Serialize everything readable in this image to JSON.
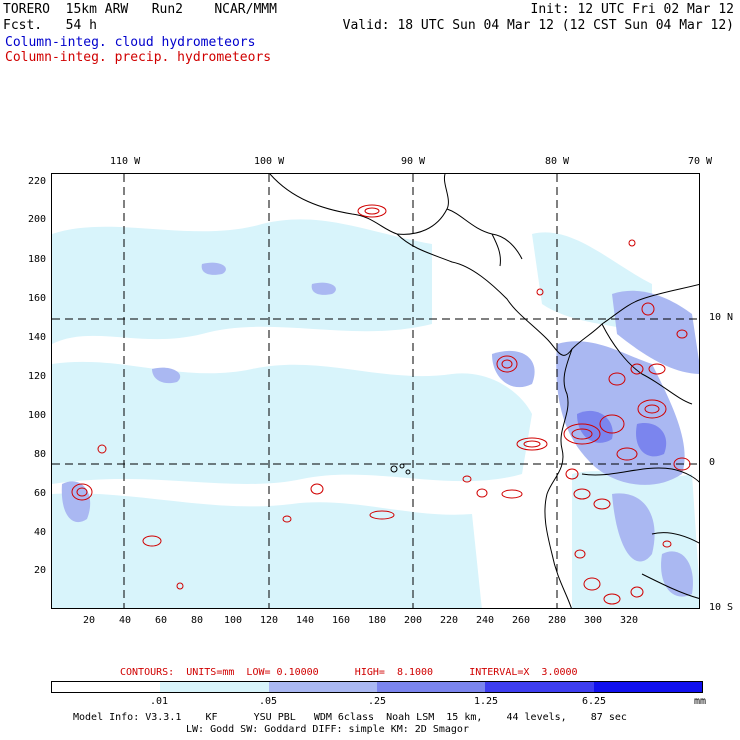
{
  "header": {
    "model_title": "TORERO  15km ARW   Run2    NCAR/MMM",
    "forecast": "Fcst.   54 h",
    "init": "Init: 12 UTC Fri 02 Mar 12",
    "valid": "Valid: 18 UTC Sun 04 Mar 12 (12 CST Sun 04 Mar 12)",
    "field_cloud": "Column-integ. cloud hydrometeors",
    "field_precip": "Column-integ. precip. hydrometeors"
  },
  "colors": {
    "cloud_blue": "#0000cc",
    "precip_red": "#d00000",
    "land_line": "#000000",
    "shade_1": "#d8f4fb",
    "shade_2": "#aab8f2",
    "shade_3": "#7b85ee",
    "shade_4": "#3d3df0",
    "shade_5": "#1010ee"
  },
  "axes": {
    "top_lon_labels": [
      "110 W",
      "100 W",
      "90 W",
      "80 W",
      "70 W"
    ],
    "right_lat_labels": [
      "10 N",
      "0",
      "10 S"
    ],
    "left_y_labels": [
      "220",
      "200",
      "180",
      "160",
      "140",
      "120",
      "100",
      "80",
      "60",
      "40",
      "20"
    ],
    "bottom_x_labels": [
      "20",
      "40",
      "60",
      "80",
      "100",
      "120",
      "140",
      "160",
      "180",
      "200",
      "220",
      "240",
      "260",
      "280",
      "300",
      "320"
    ]
  },
  "contour_info": {
    "line": "CONTOURS:  UNITS=mm  LOW= 0.10000      HIGH=  8.1000      INTERVAL=X  3.0000"
  },
  "colorbar": {
    "labels": [
      ".01",
      ".05",
      ".25",
      "1.25",
      "6.25"
    ],
    "units": "mm",
    "bins": [
      "#ffffff",
      "#d8f4fb",
      "#aab8f2",
      "#7b85ee",
      "#3d3df0",
      "#1010ee"
    ]
  },
  "footer": {
    "line1": "Model Info: V3.3.1    KF      YSU PBL   WDM 6class  Noah LSM  15 km,    44 levels,    87 sec",
    "line2": "LW: Godd SW: Goddard DIFF: simple KM: 2D Smagor"
  }
}
